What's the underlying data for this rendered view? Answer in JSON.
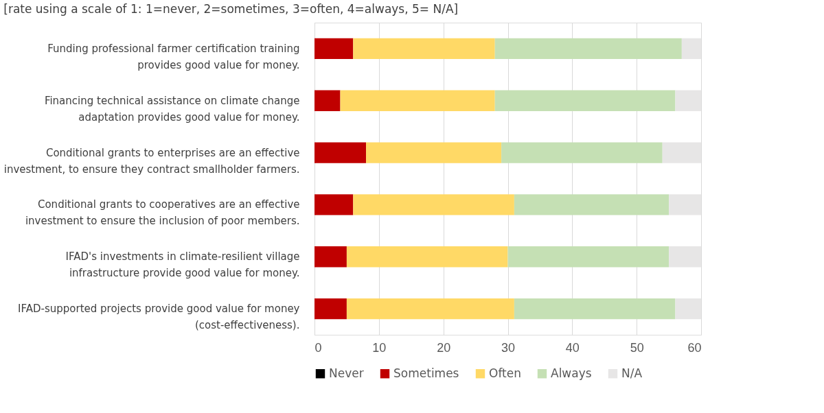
{
  "chart_data": {
    "type": "bar",
    "orientation": "horizontal",
    "stacked": true,
    "title": "[rate using a scale of 1: 1=never, 2=sometimes, 3=often, 4=always, 5= N/A]",
    "categories": [
      "Funding professional farmer certification training provides good value for money.",
      "Financing technical assistance on climate change adaptation provides good value for money.",
      "Conditional grants to enterprises are an effective investment, to ensure they contract smallholder farmers.",
      "Conditional grants to cooperatives are an effective investment to ensure the inclusion of poor members.",
      "IFAD's investments in climate-resilient village infrastructure provide good value for money.",
      "IFAD-supported projects provide good value for money (cost-effectiveness)."
    ],
    "series": [
      {
        "name": "Never",
        "color": "#000000",
        "values": [
          0,
          0,
          0,
          0,
          0,
          0
        ]
      },
      {
        "name": "Sometimes",
        "color": "#c00000",
        "values": [
          6,
          4,
          8,
          6,
          5,
          5
        ]
      },
      {
        "name": "Often",
        "color": "#ffd966",
        "values": [
          22,
          24,
          21,
          25,
          25,
          26
        ]
      },
      {
        "name": "Always",
        "color": "#c5e0b4",
        "values": [
          29,
          28,
          25,
          24,
          25,
          25
        ]
      },
      {
        "name": "N/A",
        "color": "#e7e6e6",
        "values": [
          3,
          4,
          6,
          5,
          5,
          4
        ]
      }
    ],
    "xlim": [
      0,
      60
    ],
    "xticks": [
      0,
      10,
      20,
      30,
      40,
      50,
      60
    ],
    "grid": "x",
    "legend": "bottom"
  }
}
